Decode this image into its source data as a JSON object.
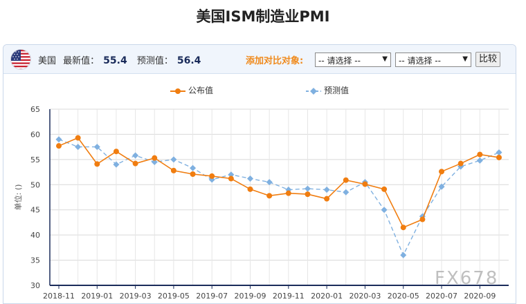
{
  "page": {
    "title": "美国ISM制造业PMI"
  },
  "toolbar": {
    "country": "美国",
    "latest_label": "最新值：",
    "latest_value": "55.4",
    "forecast_label": "预测值：",
    "forecast_value": "56.4",
    "compare_label": "添加对比对象:",
    "select1": "-- 请选择 --",
    "select2": "-- 请选择 --",
    "compare_button": "比较"
  },
  "legend": {
    "actual": "公布值",
    "forecast": "预测值"
  },
  "watermark": "FX678",
  "colors": {
    "actual": "#f07d10",
    "forecast": "#7fb0e0",
    "accent": "#f08a1c",
    "axis": "#1a2b5a"
  },
  "chart_data": {
    "type": "line",
    "ylabel": "单位: ()",
    "ylim": [
      30,
      65
    ],
    "yticks": [
      30,
      35,
      40,
      45,
      50,
      55,
      60,
      65
    ],
    "x_tick_labels": [
      "2018-11",
      "2019-01",
      "2019-03",
      "2019-05",
      "2019-07",
      "2019-09",
      "2019-11",
      "2020-01",
      "2020-03",
      "2020-05",
      "2020-07",
      "2020-09"
    ],
    "x": [
      "2018-11",
      "2018-12",
      "2019-01",
      "2019-02",
      "2019-03",
      "2019-04",
      "2019-05",
      "2019-06",
      "2019-07",
      "2019-08",
      "2019-09",
      "2019-10",
      "2019-11",
      "2019-12",
      "2020-01",
      "2020-02",
      "2020-03",
      "2020-04",
      "2020-05",
      "2020-06",
      "2020-07",
      "2020-08",
      "2020-09",
      "2020-10"
    ],
    "grid": true,
    "legend_position": "top",
    "series": [
      {
        "name": "公布值",
        "style": "solid",
        "values": [
          57.7,
          59.3,
          54.1,
          56.6,
          54.2,
          55.3,
          52.8,
          52.1,
          51.7,
          51.2,
          49.1,
          47.8,
          48.3,
          48.1,
          47.2,
          50.9,
          50.1,
          49.1,
          41.5,
          43.1,
          52.6,
          54.2,
          56.0,
          55.4
        ]
      },
      {
        "name": "预测值",
        "style": "dashed",
        "values": [
          59.0,
          57.5,
          57.5,
          54.0,
          55.8,
          54.5,
          55.0,
          53.3,
          51.0,
          52.0,
          51.2,
          50.5,
          49.0,
          49.2,
          49.0,
          48.5,
          50.5,
          45.0,
          36.0,
          43.7,
          49.6,
          53.6,
          54.8,
          56.4
        ]
      }
    ]
  }
}
